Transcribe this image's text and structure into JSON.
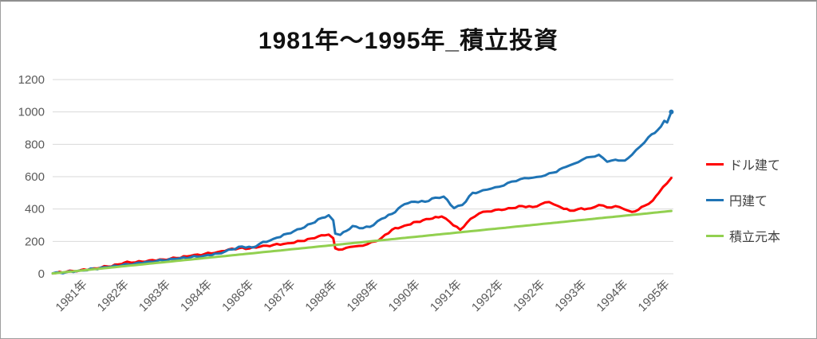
{
  "title": "1981年～1995年_積立投資",
  "chart_data": {
    "type": "line",
    "title": "1981年～1995年_積立投資",
    "legend_position": "right",
    "grid": "horizontal",
    "colors": {
      "grid": "#d9d9d9",
      "axis_text": "#595959"
    },
    "x_axis": {
      "unit": "年",
      "range_years": [
        1981,
        1996
      ],
      "labels": [
        "1981年",
        "1982年",
        "1983年",
        "1984年",
        "1986年",
        "1987年",
        "1988年",
        "1989年",
        "1990年",
        "1991年",
        "1992年",
        "1992年",
        "1993年",
        "1994年",
        "1995年"
      ]
    },
    "y_axis": {
      "min": 0,
      "max": 1200,
      "ticks": [
        0,
        200,
        400,
        600,
        800,
        1000,
        1200
      ]
    },
    "series": [
      {
        "name": "ドル建て",
        "color": "#ff0000",
        "wiggle": 5,
        "points": [
          [
            1981.0,
            2
          ],
          [
            1981.33,
            12
          ],
          [
            1981.67,
            22
          ],
          [
            1982.0,
            33
          ],
          [
            1982.33,
            45
          ],
          [
            1982.67,
            60
          ],
          [
            1982.8,
            75
          ],
          [
            1983.0,
            70
          ],
          [
            1983.33,
            82
          ],
          [
            1983.67,
            88
          ],
          [
            1984.0,
            97
          ],
          [
            1984.33,
            110
          ],
          [
            1984.67,
            122
          ],
          [
            1985.0,
            135
          ],
          [
            1985.25,
            150
          ],
          [
            1985.5,
            158
          ],
          [
            1985.75,
            156
          ],
          [
            1986.0,
            166
          ],
          [
            1986.33,
            178
          ],
          [
            1986.67,
            188
          ],
          [
            1987.0,
            202
          ],
          [
            1987.25,
            218
          ],
          [
            1987.5,
            238
          ],
          [
            1987.67,
            242
          ],
          [
            1987.78,
            220
          ],
          [
            1987.83,
            157
          ],
          [
            1988.0,
            150
          ],
          [
            1988.2,
            166
          ],
          [
            1988.4,
            172
          ],
          [
            1988.6,
            182
          ],
          [
            1988.8,
            200
          ],
          [
            1988.95,
            222
          ],
          [
            1989.2,
            272
          ],
          [
            1989.5,
            297
          ],
          [
            1989.8,
            321
          ],
          [
            1990.1,
            338
          ],
          [
            1990.4,
            354
          ],
          [
            1990.6,
            320
          ],
          [
            1990.85,
            272
          ],
          [
            1991.1,
            340
          ],
          [
            1991.3,
            372
          ],
          [
            1991.5,
            385
          ],
          [
            1991.7,
            395
          ],
          [
            1991.85,
            394
          ],
          [
            1992.1,
            405
          ],
          [
            1992.35,
            418
          ],
          [
            1992.6,
            412
          ],
          [
            1992.8,
            430
          ],
          [
            1993.0,
            443
          ],
          [
            1993.2,
            420
          ],
          [
            1993.5,
            390
          ],
          [
            1993.7,
            400
          ],
          [
            1994.0,
            404
          ],
          [
            1994.2,
            425
          ],
          [
            1994.4,
            410
          ],
          [
            1994.6,
            418
          ],
          [
            1994.8,
            400
          ],
          [
            1995.0,
            382
          ],
          [
            1995.15,
            395
          ],
          [
            1995.3,
            420
          ],
          [
            1995.5,
            452
          ],
          [
            1995.65,
            500
          ],
          [
            1995.75,
            536
          ],
          [
            1995.85,
            560
          ],
          [
            1995.95,
            592
          ]
        ]
      },
      {
        "name": "円建て",
        "color": "#1f74b5",
        "wiggle": 5,
        "points": [
          [
            1981.0,
            2
          ],
          [
            1981.33,
            10
          ],
          [
            1981.67,
            20
          ],
          [
            1982.0,
            30
          ],
          [
            1982.33,
            40
          ],
          [
            1982.67,
            52
          ],
          [
            1983.0,
            64
          ],
          [
            1983.33,
            75
          ],
          [
            1983.67,
            83
          ],
          [
            1984.0,
            92
          ],
          [
            1984.33,
            102
          ],
          [
            1984.67,
            112
          ],
          [
            1985.0,
            125
          ],
          [
            1985.33,
            150
          ],
          [
            1985.58,
            168
          ],
          [
            1985.83,
            162
          ],
          [
            1986.0,
            185
          ],
          [
            1986.33,
            215
          ],
          [
            1986.67,
            248
          ],
          [
            1987.0,
            278
          ],
          [
            1987.25,
            310
          ],
          [
            1987.5,
            345
          ],
          [
            1987.67,
            362
          ],
          [
            1987.78,
            330
          ],
          [
            1987.83,
            248
          ],
          [
            1987.95,
            240
          ],
          [
            1988.1,
            265
          ],
          [
            1988.25,
            295
          ],
          [
            1988.5,
            282
          ],
          [
            1988.75,
            300
          ],
          [
            1988.95,
            340
          ],
          [
            1989.2,
            370
          ],
          [
            1989.5,
            430
          ],
          [
            1989.75,
            445
          ],
          [
            1990.0,
            445
          ],
          [
            1990.25,
            470
          ],
          [
            1990.45,
            477
          ],
          [
            1990.7,
            405
          ],
          [
            1990.9,
            425
          ],
          [
            1991.15,
            500
          ],
          [
            1991.3,
            505
          ],
          [
            1991.5,
            520
          ],
          [
            1991.7,
            535
          ],
          [
            1991.9,
            545
          ],
          [
            1992.1,
            570
          ],
          [
            1992.3,
            585
          ],
          [
            1992.5,
            590
          ],
          [
            1992.7,
            598
          ],
          [
            1992.9,
            608
          ],
          [
            1993.1,
            625
          ],
          [
            1993.4,
            660
          ],
          [
            1993.6,
            680
          ],
          [
            1993.8,
            705
          ],
          [
            1994.0,
            722
          ],
          [
            1994.2,
            735
          ],
          [
            1994.4,
            692
          ],
          [
            1994.6,
            705
          ],
          [
            1994.83,
            700
          ],
          [
            1995.0,
            735
          ],
          [
            1995.2,
            787
          ],
          [
            1995.4,
            845
          ],
          [
            1995.55,
            870
          ],
          [
            1995.7,
            910
          ],
          [
            1995.78,
            945
          ],
          [
            1995.85,
            935
          ],
          [
            1995.95,
            1000
          ]
        ]
      },
      {
        "name": "積立元本",
        "color": "#92d050",
        "wiggle": 0,
        "points": [
          [
            1981.0,
            2
          ],
          [
            1995.95,
            388
          ]
        ]
      }
    ]
  },
  "legend": {
    "items": [
      {
        "label": "ドル建て"
      },
      {
        "label": "円建て"
      },
      {
        "label": "積立元本"
      }
    ]
  }
}
